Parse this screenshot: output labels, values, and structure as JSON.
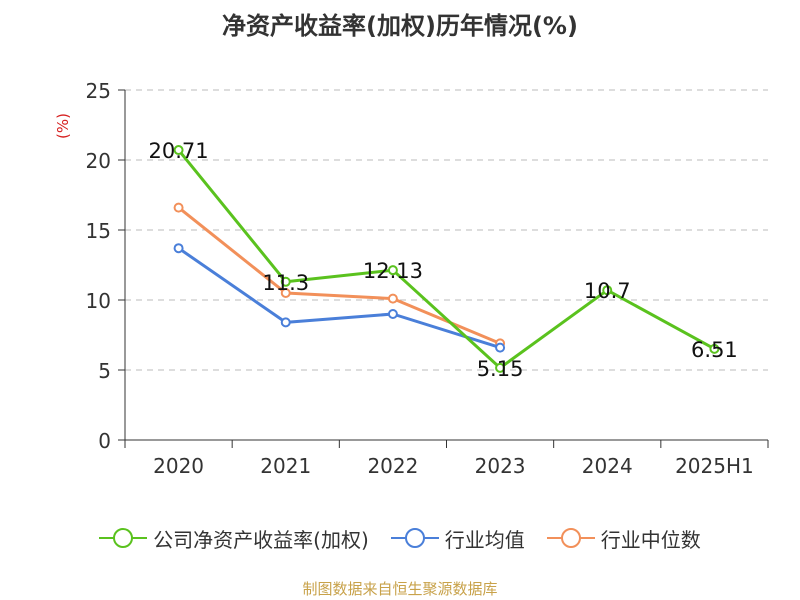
{
  "chart_data": {
    "type": "line",
    "title": "净资产收益率(加权)历年情况(%)",
    "ylabel": "(%)",
    "categories": [
      "2020",
      "2021",
      "2022",
      "2023",
      "2024",
      "2025H1"
    ],
    "ylim": [
      0,
      25
    ],
    "yticks": [
      0,
      5,
      10,
      15,
      20,
      25
    ],
    "grid": true,
    "legend_position": "bottom",
    "series": [
      {
        "name": "公司净资产收益率(加权)",
        "color": "#5ac21e",
        "values": [
          20.71,
          11.3,
          12.13,
          5.15,
          10.7,
          6.51
        ],
        "data_labels": [
          "20.71",
          "11.3",
          "12.13",
          "5.15",
          "10.7",
          "6.51"
        ]
      },
      {
        "name": "行业均值",
        "color": "#4a7fd9",
        "values": [
          13.7,
          8.4,
          9.0,
          6.6,
          null,
          null
        ]
      },
      {
        "name": "行业中位数",
        "color": "#f2905a",
        "values": [
          16.6,
          10.5,
          10.1,
          6.9,
          null,
          null
        ]
      }
    ]
  },
  "source": "制图数据来自恒生聚源数据库"
}
